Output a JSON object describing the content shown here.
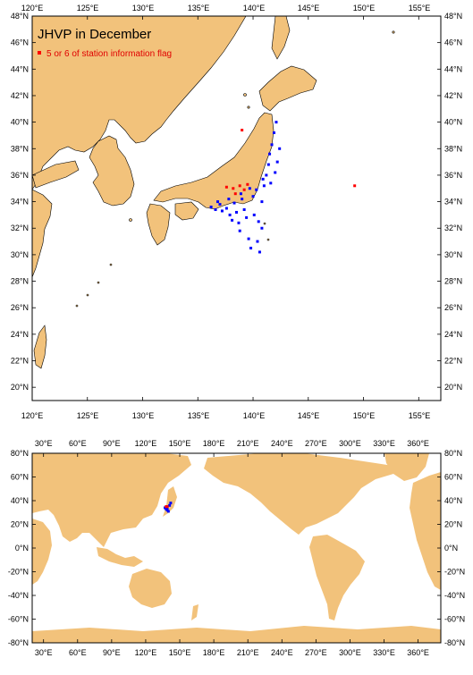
{
  "colors": {
    "land": "#f2c27b",
    "sea": "#ffffff",
    "normal": "#0000ff",
    "flagged": "#ff0000",
    "frame": "#000000"
  },
  "top_map": {
    "title": "JHVP in December",
    "legend": "5 or 6 of station information flag",
    "lon_ticks": [
      "120°E",
      "125°E",
      "130°E",
      "135°E",
      "140°E",
      "145°E",
      "150°E",
      "155°E"
    ],
    "lat_ticks": [
      "20°N",
      "22°N",
      "24°N",
      "26°N",
      "28°N",
      "30°N",
      "32°N",
      "34°N",
      "36°N",
      "38°N",
      "40°N",
      "42°N",
      "44°N",
      "46°N",
      "48°N"
    ],
    "lat_ticks_left": [
      "20°N",
      "22°N",
      "24°N",
      "26°N",
      "28°N",
      "30°N",
      "32°N",
      "34°N",
      "36°N",
      "38°N",
      "40°N",
      "42°N",
      "44°N",
      "46°N",
      "48°N"
    ],
    "lat_ticks_right": [
      "20°N",
      "22°N",
      "24°N",
      "26°N",
      "28°N",
      "30°N",
      "32°N",
      "34°N",
      "36°N",
      "38°N",
      "40°N",
      "42°N",
      "44°N",
      "46°N",
      "48°N"
    ],
    "lon_range": [
      120,
      157
    ],
    "lat_range": [
      19,
      48
    ],
    "stations_normal": [
      [
        136.2,
        33.6
      ],
      [
        136.6,
        33.4
      ],
      [
        137.0,
        33.8
      ],
      [
        137.2,
        33.3
      ],
      [
        137.6,
        33.5
      ],
      [
        137.9,
        33.0
      ],
      [
        138.1,
        32.6
      ],
      [
        138.3,
        33.9
      ],
      [
        138.5,
        33.2
      ],
      [
        138.7,
        32.4
      ],
      [
        138.8,
        31.8
      ],
      [
        139.0,
        34.2
      ],
      [
        139.2,
        33.4
      ],
      [
        139.4,
        32.8
      ],
      [
        139.6,
        31.2
      ],
      [
        139.8,
        30.5
      ],
      [
        140.0,
        34.4
      ],
      [
        140.1,
        33.0
      ],
      [
        140.4,
        31.0
      ],
      [
        140.6,
        30.2
      ],
      [
        140.8,
        34.0
      ],
      [
        141.0,
        35.2
      ],
      [
        141.2,
        36.0
      ],
      [
        141.4,
        36.8
      ],
      [
        141.5,
        37.6
      ],
      [
        141.7,
        38.3
      ],
      [
        141.9,
        39.2
      ],
      [
        142.1,
        40.0
      ],
      [
        141.6,
        35.4
      ],
      [
        142.0,
        36.2
      ],
      [
        142.2,
        37.0
      ],
      [
        142.4,
        38.0
      ],
      [
        140.9,
        35.7
      ],
      [
        140.3,
        34.9
      ],
      [
        139.7,
        35.0
      ],
      [
        138.9,
        34.6
      ],
      [
        137.8,
        34.2
      ],
      [
        136.8,
        34.0
      ],
      [
        140.5,
        32.5
      ],
      [
        140.8,
        32.0
      ]
    ],
    "stations_flagged": [
      [
        137.6,
        35.1
      ],
      [
        138.2,
        35.0
      ],
      [
        138.8,
        35.2
      ],
      [
        139.2,
        34.9
      ],
      [
        139.5,
        35.3
      ],
      [
        139.0,
        39.4
      ],
      [
        149.2,
        35.2
      ],
      [
        138.4,
        34.6
      ]
    ]
  },
  "bottom_map": {
    "lon_ticks": [
      "30°E",
      "60°E",
      "90°E",
      "120°E",
      "150°E",
      "180°E",
      "210°E",
      "240°E",
      "270°E",
      "300°E",
      "330°E",
      "360°E"
    ],
    "lat_ticks": [
      "-80°N",
      "-60°N",
      "-40°N",
      "-20°N",
      "0°N",
      "20°N",
      "40°N",
      "60°N",
      "80°N"
    ],
    "lat_ticks_left": [
      "-80°N",
      "-60°N",
      "-40°N",
      "-20°N",
      "0°N",
      "20°N",
      "40°N",
      "60°N",
      "80°N"
    ],
    "lat_ticks_right": [
      "-80°N",
      "-60°N",
      "-40°N",
      "-20°N",
      "0°N",
      "20°N",
      "40°N",
      "60°N",
      "80°N"
    ],
    "lon_range": [
      20,
      380
    ],
    "lat_range": [
      -80,
      80
    ],
    "stations_normal": [
      [
        137,
        34
      ],
      [
        138,
        33
      ],
      [
        139,
        32
      ],
      [
        140,
        31
      ],
      [
        141,
        36
      ],
      [
        142,
        38
      ],
      [
        139,
        34
      ]
    ],
    "stations_flagged": [
      [
        138,
        35
      ],
      [
        139,
        35
      ]
    ]
  }
}
